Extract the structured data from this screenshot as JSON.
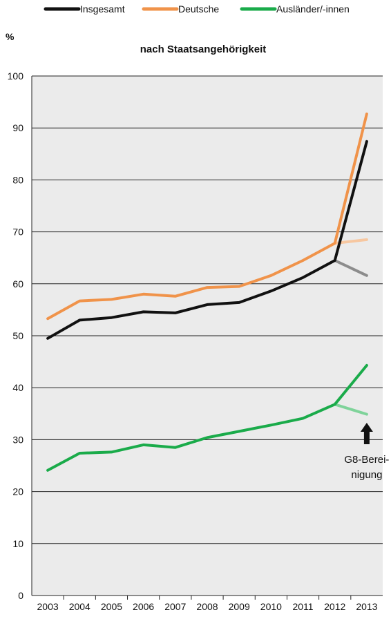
{
  "chart_data": {
    "type": "line",
    "title": "nach Staatsangehörigkeit",
    "ylabel": "%",
    "xlabel": "",
    "ylim": [
      0,
      100
    ],
    "yticks": [
      0,
      10,
      20,
      30,
      40,
      50,
      60,
      70,
      80,
      90,
      100
    ],
    "categories": [
      "2003",
      "2004",
      "2005",
      "2006",
      "2007",
      "2008",
      "2009",
      "2010",
      "2011",
      "2012",
      "2013"
    ],
    "legend_position": "top",
    "grid": "horizontal",
    "plot_background": "#ebebeb",
    "series": [
      {
        "name": "Insgesamt",
        "color": "#111111",
        "values": [
          49.5,
          53.0,
          53.5,
          54.6,
          54.4,
          56.0,
          56.4,
          58.6,
          61.2,
          64.5,
          87.4
        ]
      },
      {
        "name": "Deutsche",
        "color": "#f0934a",
        "values": [
          53.3,
          56.7,
          57.0,
          58.0,
          57.6,
          59.3,
          59.5,
          61.6,
          64.5,
          67.8,
          92.7
        ]
      },
      {
        "name": "Ausländer/-innen",
        "color": "#1aab4a",
        "values": [
          24.1,
          27.4,
          27.6,
          29.0,
          28.5,
          30.4,
          31.6,
          32.8,
          34.1,
          36.8,
          44.3
        ]
      }
    ],
    "adjusted_series": [
      {
        "of": "Insgesamt",
        "color": "#8c8c8c",
        "from": "2012",
        "to": "2013",
        "values": [
          64.5,
          61.6
        ]
      },
      {
        "of": "Deutsche",
        "color": "#f7c7a0",
        "from": "2012",
        "to": "2013",
        "values": [
          67.8,
          68.5
        ]
      },
      {
        "of": "Ausländer/-innen",
        "color": "#7fd39a",
        "from": "2012",
        "to": "2013",
        "values": [
          36.8,
          34.9
        ]
      }
    ],
    "annotation": {
      "lines": [
        "G8-Berei-",
        "nigung"
      ],
      "icon": "up-arrow-icon",
      "category": "2013"
    }
  }
}
